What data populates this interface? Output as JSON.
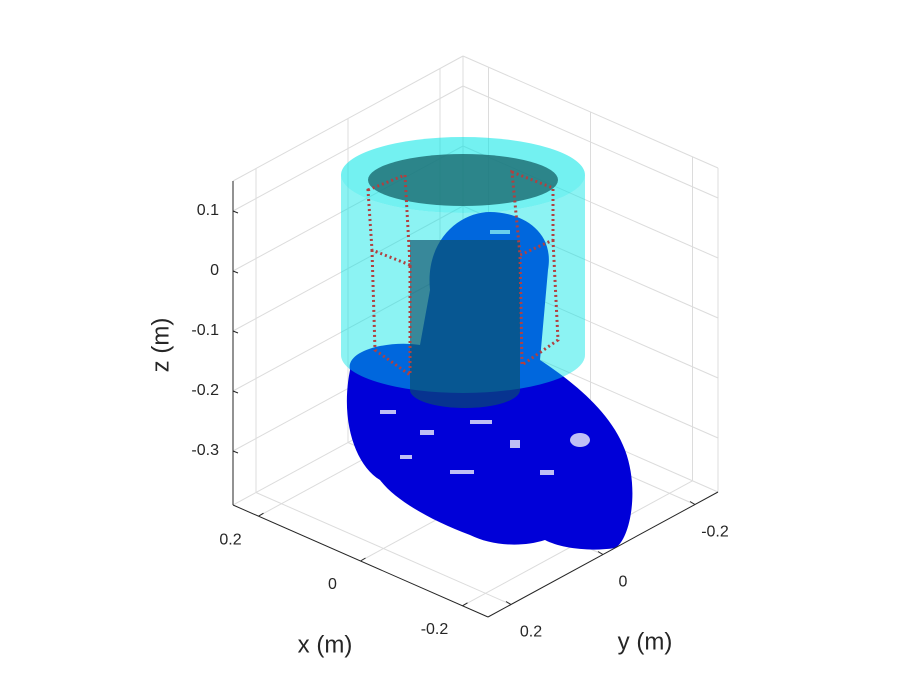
{
  "chart_data": {
    "type": "3d",
    "xlabel": "x (m)",
    "ylabel": "y (m)",
    "zlabel": "z (m)",
    "xlim": [
      0.25,
      -0.25
    ],
    "xticks": [
      0.2,
      0,
      -0.2
    ],
    "ylim": [
      0.25,
      -0.25
    ],
    "yticks": [
      0.2,
      0,
      -0.2
    ],
    "zlim": [
      -0.39,
      0.15
    ],
    "zticks": [
      0.1,
      0,
      -0.1,
      -0.2,
      -0.3
    ],
    "grid": true
  }
}
